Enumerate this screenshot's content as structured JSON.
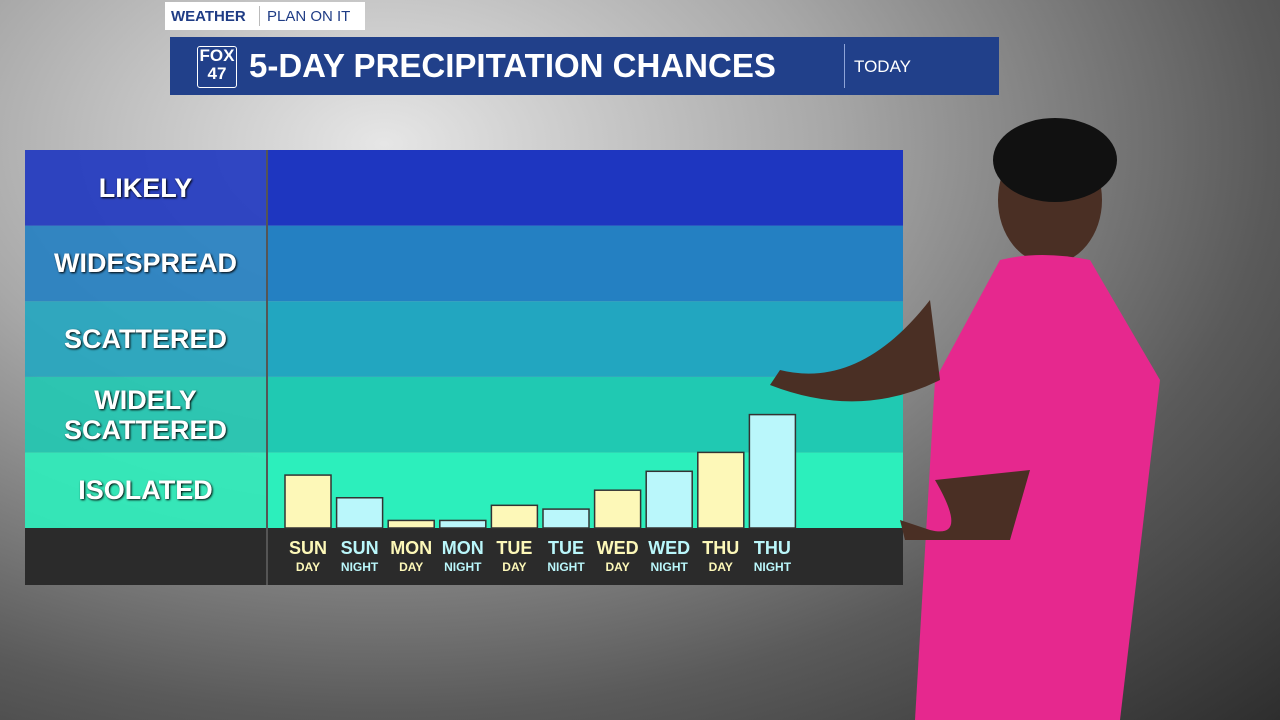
{
  "header": {
    "section": "WEATHER",
    "tagline": "PLAN ON IT",
    "logo": [
      "FOX",
      "47"
    ],
    "tag": "TODAY"
  },
  "chart_data": {
    "type": "bar",
    "title": "5-DAY PRECIPITATION CHANCES",
    "categories": [
      "SUN",
      "SUN",
      "MON",
      "MON",
      "TUE",
      "TUE",
      "WED",
      "WED",
      "THU",
      "THU"
    ],
    "periods": [
      "DAY",
      "NIGHT",
      "DAY",
      "NIGHT",
      "DAY",
      "NIGHT",
      "DAY",
      "NIGHT",
      "DAY",
      "NIGHT"
    ],
    "values": [
      0.7,
      0.4,
      0.1,
      0.1,
      0.3,
      0.25,
      0.5,
      0.75,
      1.0,
      1.5
    ],
    "colors": [
      "#fdf8b8",
      "#baf7fb",
      "#fdf8b8",
      "#baf7fb",
      "#fdf8b8",
      "#baf7fb",
      "#fdf8b8",
      "#baf7fb",
      "#fdf8b8",
      "#baf7fb"
    ],
    "ylim": [
      0,
      5
    ],
    "yticks": [
      {
        "value": 0.5,
        "label": "ISOLATED"
      },
      {
        "value": 1.5,
        "label": "WIDELY SCATTERED"
      },
      {
        "value": 2.5,
        "label": "SCATTERED"
      },
      {
        "value": 3.5,
        "label": "WIDESPREAD"
      },
      {
        "value": 4.5,
        "label": "LIKELY"
      }
    ],
    "band_colors": [
      "#2cefbc",
      "#20c9b2",
      "#22a6c0",
      "#2480c2",
      "#1e36c0"
    ]
  }
}
